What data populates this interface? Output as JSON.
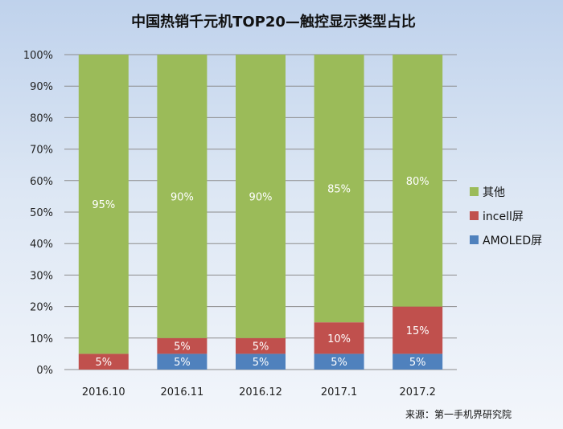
{
  "chart_data": {
    "type": "bar",
    "stacked": true,
    "title": "中国热销千元机TOP20—触控显示类型占比",
    "categories": [
      "2016.10",
      "2016.11",
      "2016.12",
      "2017.1",
      "2017.2"
    ],
    "series": [
      {
        "name": "AMOLED屏",
        "color": "#4f81bd",
        "values": [
          0,
          5,
          5,
          5,
          5
        ],
        "labels": [
          "",
          "5%",
          "5%",
          "5%",
          "5%"
        ]
      },
      {
        "name": "incell屏",
        "color": "#c0504d",
        "values": [
          5,
          5,
          5,
          10,
          15
        ],
        "labels": [
          "5%",
          "5%",
          "5%",
          "10%",
          "15%"
        ]
      },
      {
        "name": "其他",
        "color": "#9bbb59",
        "values": [
          95,
          90,
          90,
          85,
          80
        ],
        "labels": [
          "95%",
          "90%",
          "90%",
          "85%",
          "80%"
        ]
      }
    ],
    "y_ticks": [
      "0%",
      "10%",
      "20%",
      "30%",
      "40%",
      "50%",
      "60%",
      "70%",
      "80%",
      "90%",
      "100%"
    ],
    "ylim": [
      0,
      100
    ],
    "grid": true,
    "legend_position": "right",
    "legend_order": [
      "其他",
      "incell屏",
      "AMOLED屏"
    ],
    "source": "来源：第一手机界研究院"
  }
}
